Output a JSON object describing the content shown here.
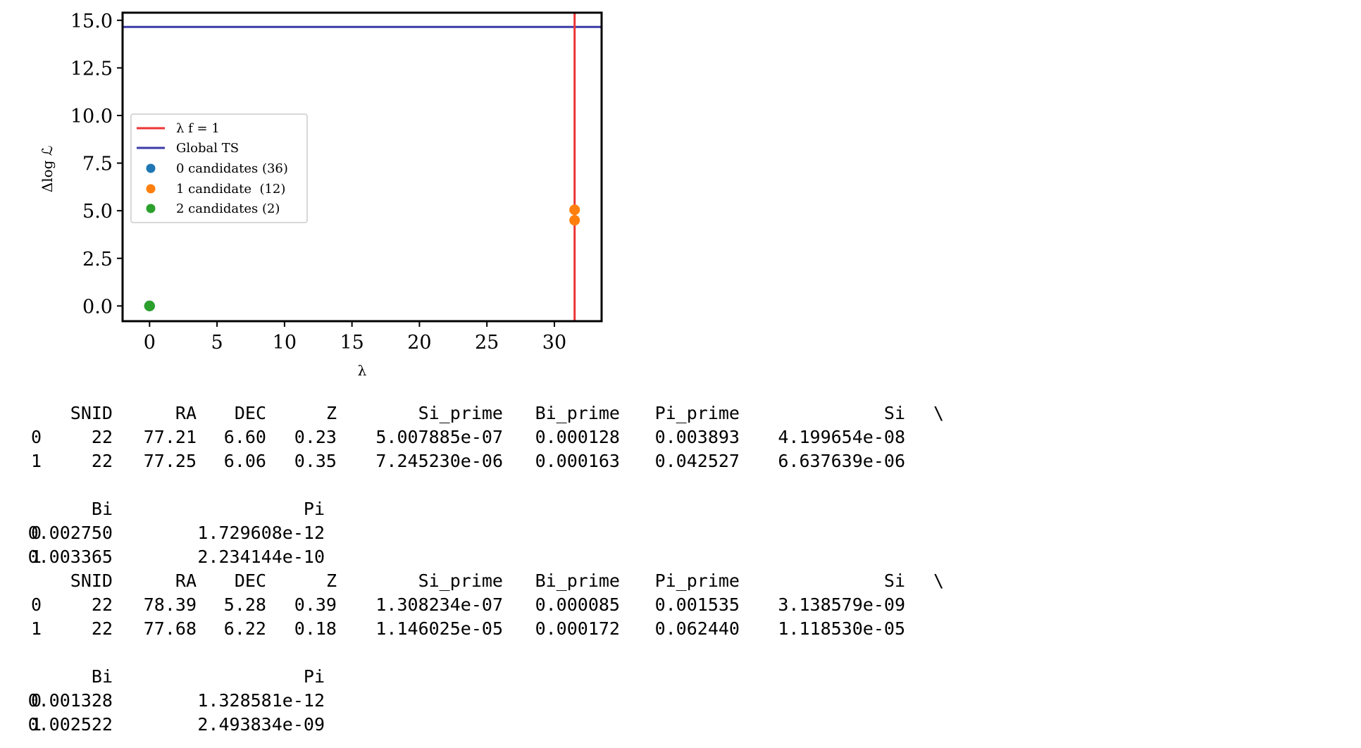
{
  "chart_data": {
    "type": "scatter",
    "xlabel": "λ",
    "ylabel": "Δlog ℒ",
    "xlim": [
      -2,
      33.5
    ],
    "ylim": [
      -0.8,
      15.4
    ],
    "x_ticks": [
      0,
      5,
      10,
      15,
      20,
      25,
      30
    ],
    "x_tick_labels": [
      "0",
      "5",
      "10",
      "15",
      "20",
      "25",
      "30"
    ],
    "y_ticks": [
      0.0,
      2.5,
      5.0,
      7.5,
      10.0,
      12.5,
      15.0
    ],
    "y_tick_labels": [
      "0.0",
      "2.5",
      "5.0",
      "7.5",
      "10.0",
      "12.5",
      "15.0"
    ],
    "grid": false,
    "legend_position": "center-left",
    "vertical_line": {
      "label": "λ f = 1",
      "x": 31.5,
      "color": "#ee3333"
    },
    "horizontal_line": {
      "label": "Global TS",
      "y": 14.65,
      "color": "#3b3ba8"
    },
    "series": [
      {
        "name": "0 candidates (36)",
        "color": "#1f77b4",
        "x": [
          0,
          0,
          0
        ],
        "y": [
          0,
          0,
          0
        ]
      },
      {
        "name": "1 candidate  (12)",
        "color": "#ff7f0e",
        "x": [
          31.5,
          31.5
        ],
        "y": [
          4.5,
          5.05
        ]
      },
      {
        "name": "2 candidates (2)",
        "color": "#2ca02c",
        "x": [
          0,
          0
        ],
        "y": [
          0,
          0
        ]
      }
    ]
  },
  "output": {
    "tables": [
      {
        "headers1": [
          "SNID",
          "RA",
          "DEC",
          "Z",
          "Si_prime",
          "Bi_prime",
          "Pi_prime",
          "Si",
          "\\"
        ],
        "rows1": [
          [
            "0",
            "22",
            "77.21",
            "6.60",
            "0.23",
            "5.007885e-07",
            "0.000128",
            "0.003893",
            "4.199654e-08"
          ],
          [
            "1",
            "22",
            "77.25",
            "6.06",
            "0.35",
            "7.245230e-06",
            "0.000163",
            "0.042527",
            "6.637639e-06"
          ]
        ],
        "headers2": [
          "Bi",
          "Pi"
        ],
        "rows2": [
          [
            "0",
            "0.002750",
            "1.729608e-12"
          ],
          [
            "1",
            "0.003365",
            "2.234144e-10"
          ]
        ]
      },
      {
        "headers1": [
          "SNID",
          "RA",
          "DEC",
          "Z",
          "Si_prime",
          "Bi_prime",
          "Pi_prime",
          "Si",
          "\\"
        ],
        "rows1": [
          [
            "0",
            "22",
            "78.39",
            "5.28",
            "0.39",
            "1.308234e-07",
            "0.000085",
            "0.001535",
            "3.138579e-09"
          ],
          [
            "1",
            "22",
            "77.68",
            "6.22",
            "0.18",
            "1.146025e-05",
            "0.000172",
            "0.062440",
            "1.118530e-05"
          ]
        ],
        "headers2": [
          "Bi",
          "Pi"
        ],
        "rows2": [
          [
            "0",
            "0.001328",
            "1.328581e-12"
          ],
          [
            "1",
            "0.002522",
            "2.493834e-09"
          ]
        ]
      }
    ]
  }
}
